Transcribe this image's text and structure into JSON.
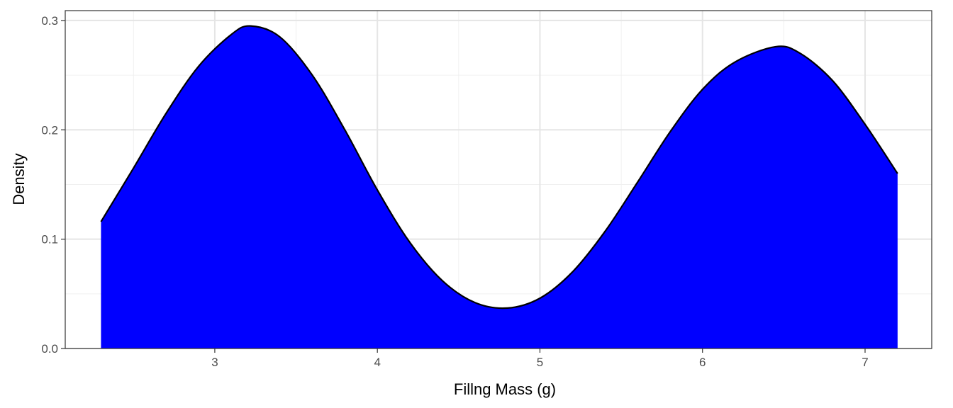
{
  "chart_data": {
    "type": "area",
    "title": "",
    "xlabel": "Fillng Mass (g)",
    "ylabel": "Density",
    "xlim": [
      2.08,
      7.41
    ],
    "ylim": [
      0,
      0.309
    ],
    "x_ticks": [
      3,
      4,
      5,
      6,
      7
    ],
    "x_tick_labels": [
      "3",
      "4",
      "5",
      "6",
      "7"
    ],
    "y_ticks": [
      0.0,
      0.1,
      0.2,
      0.3
    ],
    "y_tick_labels": [
      "0.0",
      "0.1",
      "0.2",
      "0.3"
    ],
    "grid": true,
    "fill_color": "#0000ff",
    "line_color": "#000000",
    "series": [
      {
        "x": [
          2.3,
          2.5,
          2.7,
          2.9,
          3.1,
          3.22,
          3.4,
          3.6,
          3.8,
          4.0,
          4.2,
          4.4,
          4.6,
          4.8,
          5.0,
          5.2,
          5.4,
          5.6,
          5.8,
          6.0,
          6.2,
          6.45,
          6.6,
          6.8,
          7.0,
          7.2
        ],
        "y": [
          0.116,
          0.165,
          0.215,
          0.258,
          0.287,
          0.295,
          0.285,
          0.25,
          0.2,
          0.145,
          0.097,
          0.062,
          0.042,
          0.037,
          0.046,
          0.07,
          0.107,
          0.152,
          0.198,
          0.237,
          0.262,
          0.276,
          0.27,
          0.245,
          0.205,
          0.16
        ]
      }
    ]
  }
}
